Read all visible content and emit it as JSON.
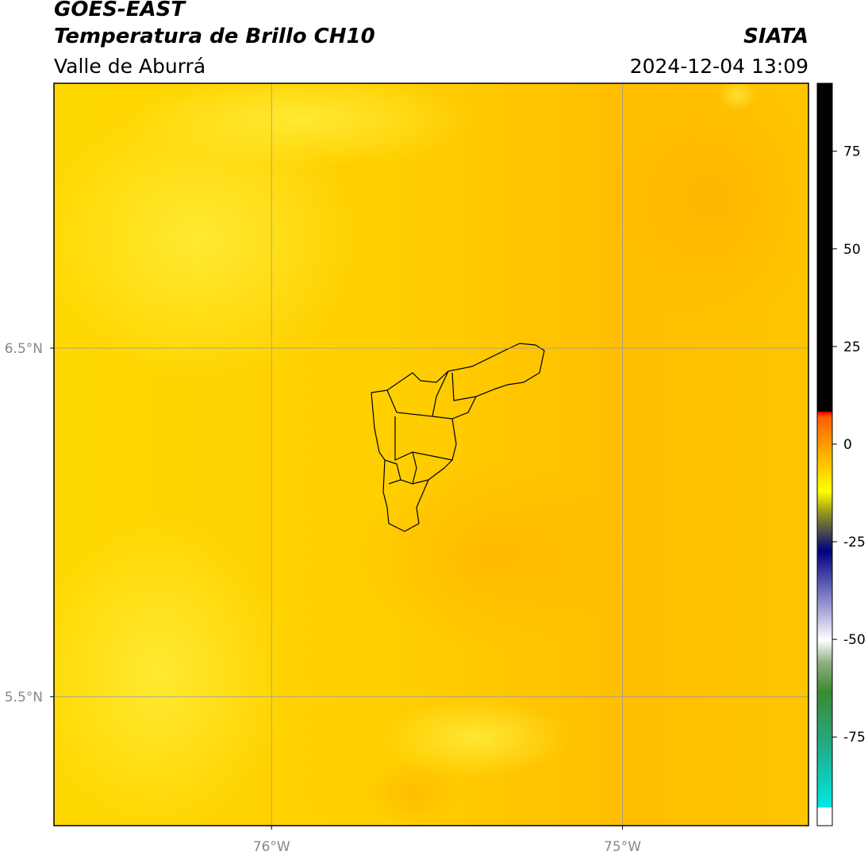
{
  "header": {
    "title": "GOES-EAST",
    "subtitle": "Temperatura de Brillo CH10",
    "region": "Valle de Aburrá",
    "source": "SIATA",
    "timestamp": "2024-12-04 13:09"
  },
  "map": {
    "xlim": [
      -76.62,
      -74.47
    ],
    "ylim": [
      5.13,
      7.26
    ],
    "lat_ticks": [
      {
        "value": 6.5,
        "label": "6.5°N"
      },
      {
        "value": 5.5,
        "label": "5.5°N"
      }
    ],
    "lon_ticks": [
      {
        "value": -76,
        "label": "76°W"
      },
      {
        "value": -75,
        "label": "75°W"
      }
    ]
  },
  "colorbar": {
    "lim": [
      -97.7,
      92.4
    ],
    "ticks": [
      75,
      50,
      25,
      0,
      -25,
      -50,
      -75
    ]
  }
}
